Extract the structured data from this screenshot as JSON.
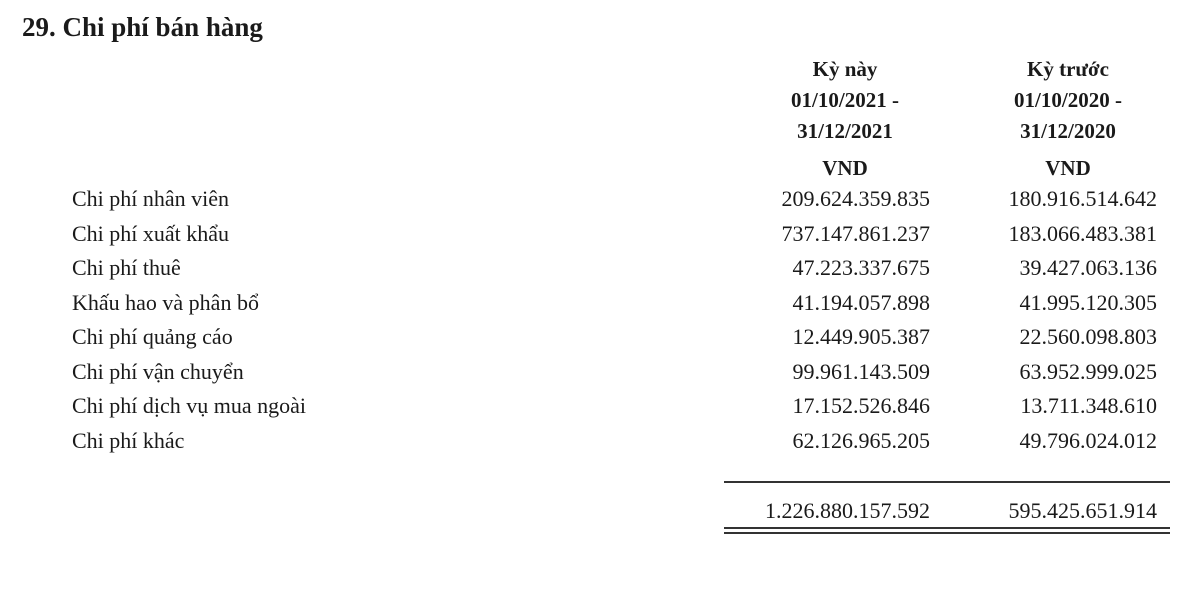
{
  "title": "29. Chi phí bán hàng",
  "columns": [
    {
      "label": "Kỳ này",
      "period_start": "01/10/2021 -",
      "period_end": "31/12/2021",
      "unit": "VND"
    },
    {
      "label": "Kỳ trước",
      "period_start": "01/10/2020 -",
      "period_end": "31/12/2020",
      "unit": "VND"
    }
  ],
  "rows": [
    {
      "label": "Chi phí nhân viên",
      "current": "209.624.359.835",
      "previous": "180.916.514.642"
    },
    {
      "label": "Chi phí xuất khẩu",
      "current": "737.147.861.237",
      "previous": "183.066.483.381"
    },
    {
      "label": "Chi phí thuê",
      "current": "47.223.337.675",
      "previous": "39.427.063.136"
    },
    {
      "label": "Khấu hao và phân bổ",
      "current": "41.194.057.898",
      "previous": "41.995.120.305"
    },
    {
      "label": "Chi phí quảng cáo",
      "current": "12.449.905.387",
      "previous": "22.560.098.803"
    },
    {
      "label": "Chi phí vận chuyển",
      "current": "99.961.143.509",
      "previous": "63.952.999.025"
    },
    {
      "label": "Chi phí dịch vụ mua ngoài",
      "current": "17.152.526.846",
      "previous": "13.711.348.610"
    },
    {
      "label": "Chi phí khác",
      "current": "62.126.965.205",
      "previous": "49.796.024.012"
    }
  ],
  "total": {
    "current": "1.226.880.157.592",
    "previous": "595.425.651.914"
  }
}
